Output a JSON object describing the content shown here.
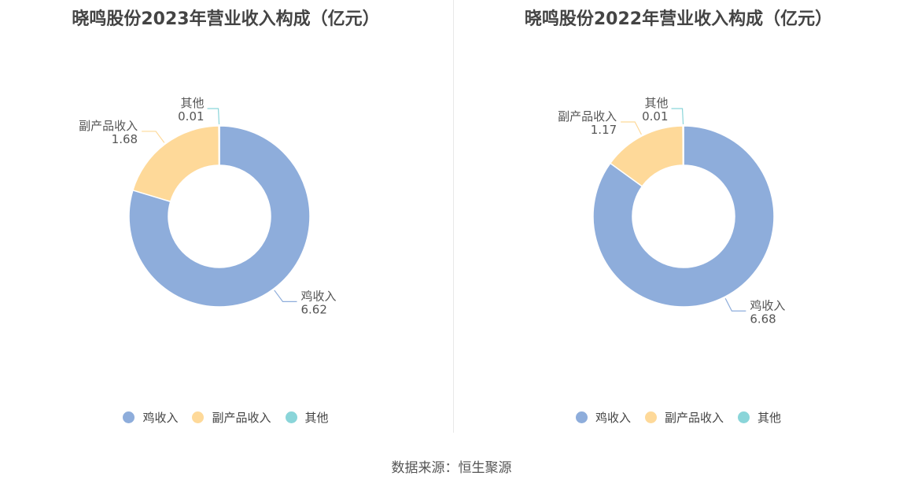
{
  "chart_data": [
    {
      "type": "pie",
      "title": "晓鸣股份2023年营业收入构成（亿元）",
      "categories": [
        "鸡收入",
        "副产品收入",
        "其他"
      ],
      "values": [
        6.62,
        1.68,
        0.01
      ],
      "value_labels": [
        "6.62",
        "1.68",
        "0.01"
      ],
      "colors": [
        "#8eaddb",
        "#fed999",
        "#8ad5d9"
      ],
      "legend": "bottom"
    },
    {
      "type": "pie",
      "title": "晓鸣股份2022年营业收入构成（亿元）",
      "categories": [
        "鸡收入",
        "副产品收入",
        "其他"
      ],
      "values": [
        6.68,
        1.17,
        0.01
      ],
      "value_labels": [
        "6.68",
        "1.17",
        "0.01"
      ],
      "colors": [
        "#8eaddb",
        "#fed999",
        "#8ad5d9"
      ],
      "legend": "bottom"
    }
  ],
  "source": "数据来源：恒生聚源"
}
